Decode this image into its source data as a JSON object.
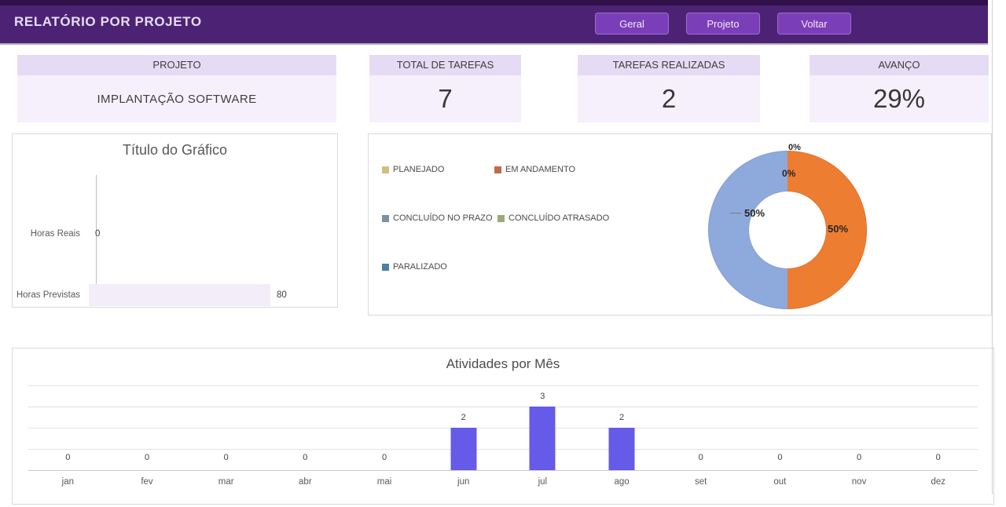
{
  "header": {
    "title": "RELATÓRIO POR PROJETO",
    "buttons": [
      {
        "label": "Geral"
      },
      {
        "label": "Projeto"
      },
      {
        "label": "Voltar"
      }
    ]
  },
  "kpis": [
    {
      "label": "PROJETO",
      "value": "IMPLANTAÇÃO SOFTWARE"
    },
    {
      "label": "TOTAL DE TAREFAS",
      "value": "7"
    },
    {
      "label": "TAREFAS REALIZADAS",
      "value": "2"
    },
    {
      "label": "AVANÇO",
      "value": "29%"
    }
  ],
  "theme": {
    "header_bg": "#4C2374",
    "header_top": "#31104A",
    "button_bg": "#7B3EB9",
    "card_header_bg": "#E6DBF4",
    "card_body_bg": "#F5F0FB"
  },
  "chart_data": [
    {
      "type": "bar",
      "orientation": "horizontal",
      "title": "Título do Gráfico",
      "categories": [
        "Horas Reais",
        "Horas Previstas"
      ],
      "values": [
        0,
        80
      ],
      "xlim": [
        0,
        100
      ],
      "bar_color": "#F3EDF9",
      "data_labels": true,
      "grid": false
    },
    {
      "type": "pie",
      "subtype": "donut",
      "legend_position": "left",
      "slices": [
        {
          "name": "PLANEJADO",
          "pct": 0,
          "legend_color": "#D2BD7C"
        },
        {
          "name": "EM ANDAMENTO",
          "pct": 50,
          "legend_color": "#C06B4A",
          "slice_color": "#ED7D31"
        },
        {
          "name": "CONCLUÍDO NO PRAZO",
          "pct": 50,
          "legend_color": "#7C92A0",
          "slice_color": "#8EA9DC"
        },
        {
          "name": "CONCLUÍDO ATRASADO",
          "pct": 0,
          "legend_color": "#9CA97A"
        },
        {
          "name": "PARALIZADO",
          "pct": 0,
          "legend_color": "#4E80A6"
        }
      ],
      "data_labels": {
        "top_outside": "0%",
        "top_inside": "0%",
        "left": "50%",
        "right": "50%"
      }
    },
    {
      "type": "bar",
      "title": "Atividades por Mês",
      "categories": [
        "jan",
        "fev",
        "mar",
        "abr",
        "mai",
        "jun",
        "jul",
        "ago",
        "set",
        "out",
        "nov",
        "dez"
      ],
      "values": [
        0,
        0,
        0,
        0,
        0,
        2,
        3,
        2,
        0,
        0,
        0,
        0
      ],
      "ylim": [
        0,
        4
      ],
      "bar_color": "#655BE8",
      "data_labels": true,
      "grid": true
    }
  ]
}
